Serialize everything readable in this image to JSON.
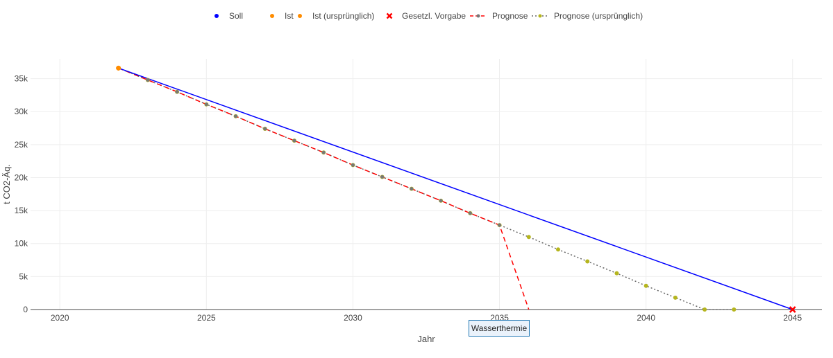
{
  "chart_data": {
    "type": "line",
    "xlabel": "Jahr",
    "ylabel": "t CO2-Äq.",
    "xlim": [
      2019,
      2046
    ],
    "ylim": [
      0,
      38000
    ],
    "x_ticks": [
      2020,
      2025,
      2030,
      2035,
      2040,
      2045
    ],
    "y_ticks": [
      0,
      5000,
      10000,
      15000,
      20000,
      25000,
      30000,
      35000
    ],
    "y_tick_labels": [
      "0",
      "5k",
      "10k",
      "15k",
      "20k",
      "25k",
      "30k",
      "35k"
    ],
    "grid": true,
    "legend_position": "top",
    "annotation": "Wasserthermie",
    "series": [
      {
        "name": "Soll",
        "style": "solid",
        "color": "#0000ff",
        "x": [
          2022,
          2045
        ],
        "y": [
          36600,
          0
        ]
      },
      {
        "name": "Ist",
        "style": "marker",
        "color": "#ff8c00",
        "x": [
          2022
        ],
        "y": [
          36600
        ]
      },
      {
        "name": "Ist (ursprünglich)",
        "style": "marker",
        "color": "#ff8c00",
        "x": [
          2022
        ],
        "y": [
          36600
        ]
      },
      {
        "name": "Gesetzl. Vorgabe",
        "style": "x-marker",
        "color": "#ff0000",
        "x": [
          2045
        ],
        "y": [
          0
        ]
      },
      {
        "name": "Prognose",
        "style": "dash",
        "color": "#ff0000",
        "x": [
          2022,
          2023,
          2024,
          2025,
          2026,
          2027,
          2028,
          2029,
          2030,
          2031,
          2032,
          2033,
          2034,
          2035,
          2036
        ],
        "y": [
          36600,
          34800,
          33000,
          31100,
          29300,
          27400,
          25600,
          23800,
          21900,
          20100,
          18300,
          16500,
          14600,
          12800,
          0
        ]
      },
      {
        "name": "Prognose (ursprünglich)",
        "style": "dot",
        "color": "#666666",
        "marker_color": "#b5b51e",
        "x": [
          2022,
          2023,
          2024,
          2025,
          2026,
          2027,
          2028,
          2029,
          2030,
          2031,
          2032,
          2033,
          2034,
          2035,
          2036,
          2037,
          2038,
          2039,
          2040,
          2041,
          2042,
          2043
        ],
        "y": [
          36600,
          34800,
          33000,
          31100,
          29300,
          27400,
          25600,
          23800,
          21900,
          20100,
          18300,
          16500,
          14600,
          12800,
          11000,
          9100,
          7300,
          5500,
          3600,
          1800,
          0,
          0
        ]
      }
    ]
  }
}
